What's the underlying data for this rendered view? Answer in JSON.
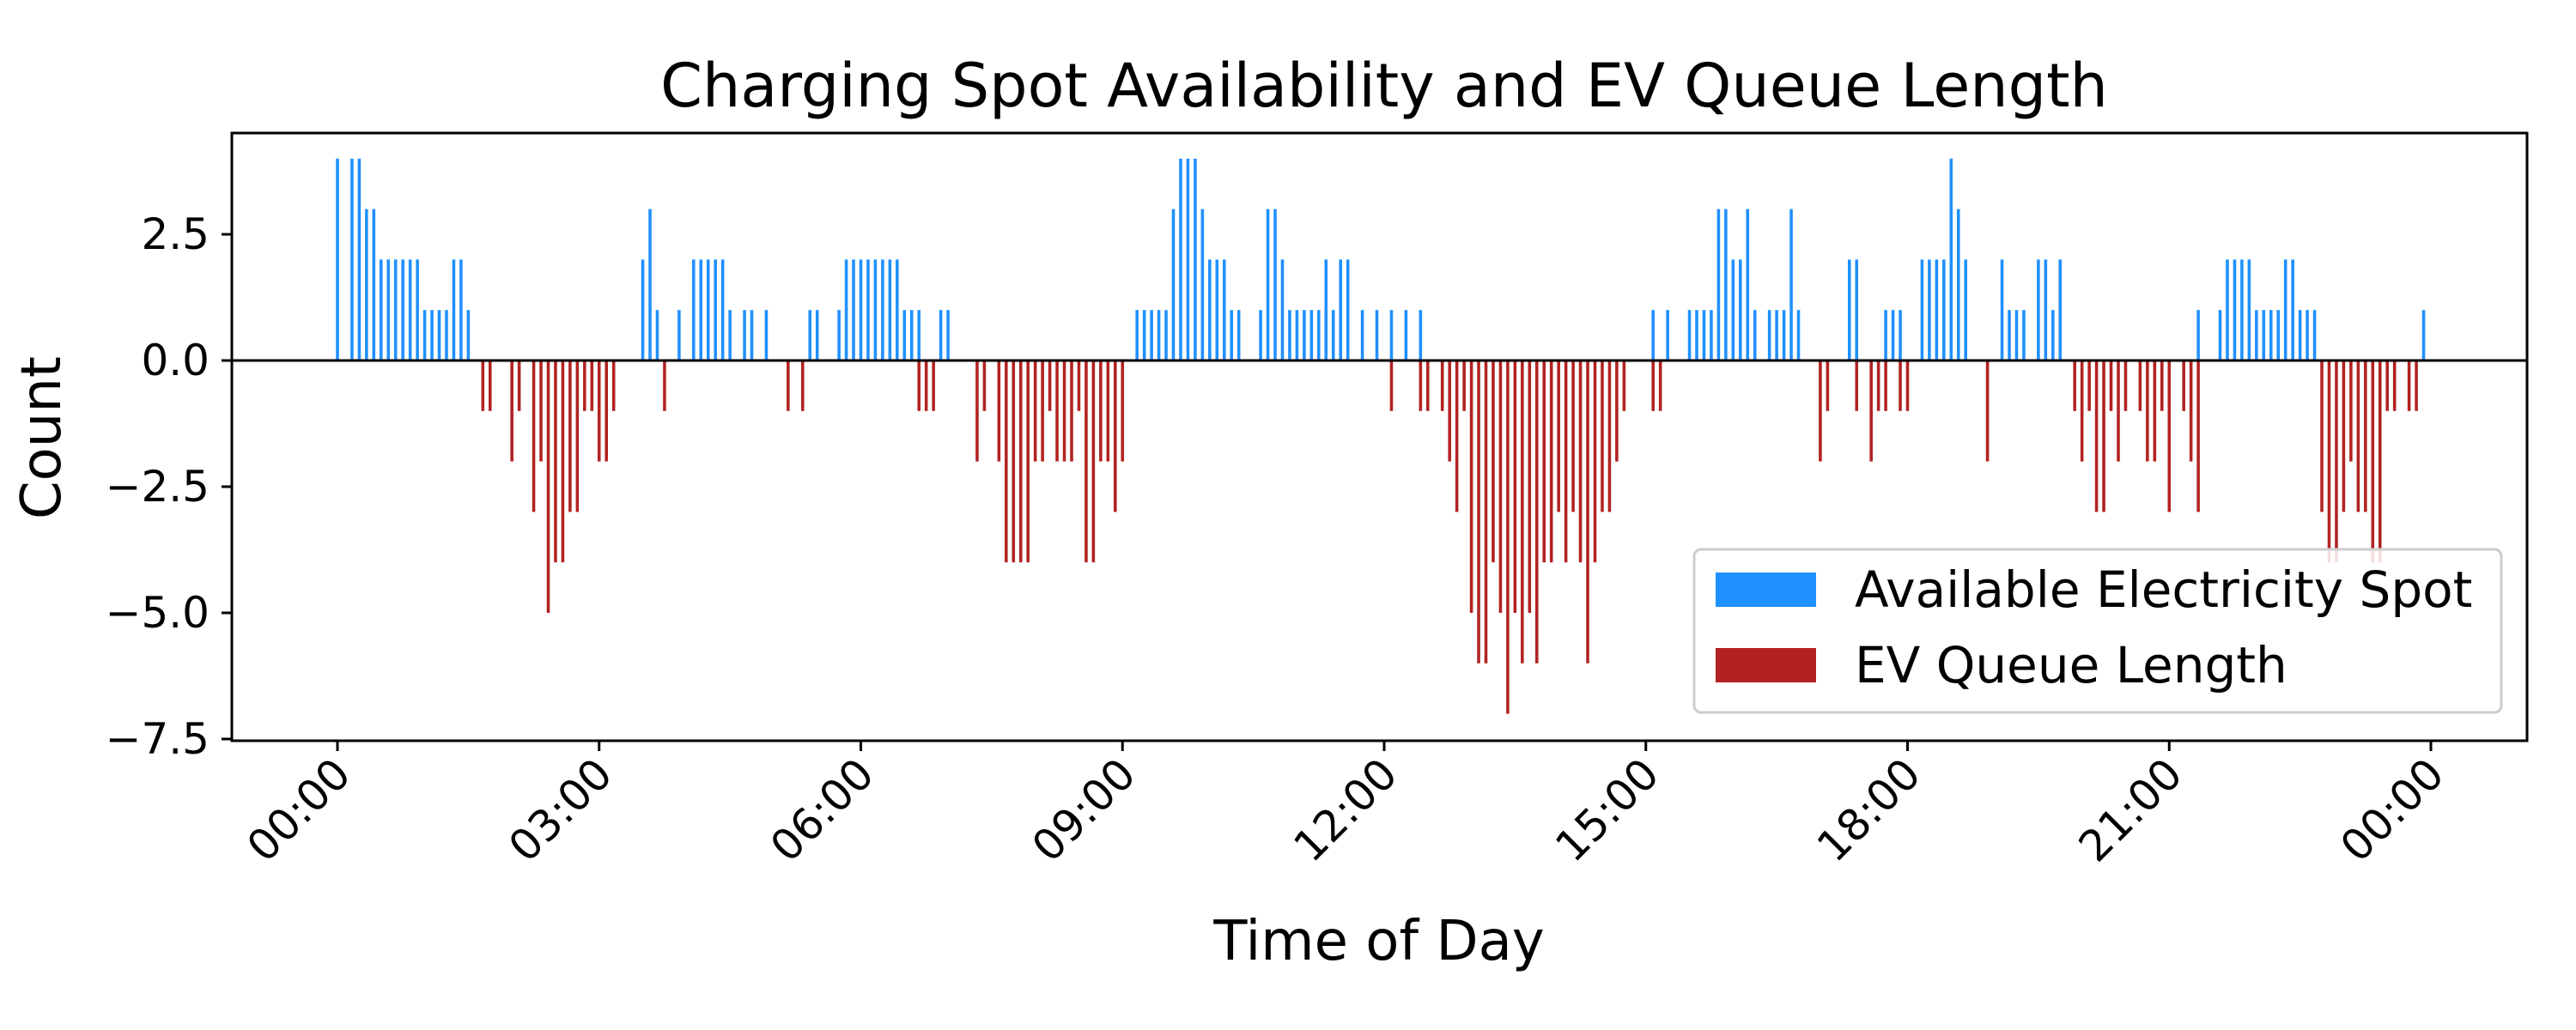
{
  "chart_data": {
    "type": "bar",
    "title": "Charging Spot Availability and EV Queue Length",
    "xlabel": "Time of Day",
    "ylabel": "Count",
    "interval_minutes": 5,
    "x_start": "00:00",
    "x_end": "00:00",
    "xticks": [
      "00:00",
      "03:00",
      "06:00",
      "09:00",
      "12:00",
      "15:00",
      "18:00",
      "21:00",
      "00:00"
    ],
    "yticks": [
      "2.5",
      "0.0",
      "−2.5",
      "−5.0",
      "−7.5"
    ],
    "ylim": [
      -7.5,
      4.5
    ],
    "legend_position": "lower-right",
    "series": [
      {
        "name": "Available Electricity Spot",
        "color": "#1f90ff",
        "points": [
          [
            "00:00",
            4
          ],
          [
            "00:10",
            4
          ],
          [
            "00:15",
            4
          ],
          [
            "00:20",
            3
          ],
          [
            "00:25",
            3
          ],
          [
            "00:30",
            2
          ],
          [
            "00:35",
            2
          ],
          [
            "00:40",
            2
          ],
          [
            "00:45",
            2
          ],
          [
            "00:50",
            2
          ],
          [
            "00:55",
            2
          ],
          [
            "01:00",
            1
          ],
          [
            "01:05",
            1
          ],
          [
            "01:10",
            1
          ],
          [
            "01:15",
            1
          ],
          [
            "01:20",
            2
          ],
          [
            "01:25",
            2
          ],
          [
            "01:30",
            1
          ],
          [
            "03:30",
            2
          ],
          [
            "03:35",
            3
          ],
          [
            "03:40",
            1
          ],
          [
            "03:55",
            1
          ],
          [
            "04:05",
            2
          ],
          [
            "04:10",
            2
          ],
          [
            "04:15",
            2
          ],
          [
            "04:20",
            2
          ],
          [
            "04:25",
            2
          ],
          [
            "04:30",
            1
          ],
          [
            "04:40",
            1
          ],
          [
            "04:45",
            1
          ],
          [
            "04:55",
            1
          ],
          [
            "05:25",
            1
          ],
          [
            "05:30",
            1
          ],
          [
            "05:45",
            1
          ],
          [
            "05:50",
            2
          ],
          [
            "05:55",
            2
          ],
          [
            "06:00",
            2
          ],
          [
            "06:05",
            2
          ],
          [
            "06:10",
            2
          ],
          [
            "06:15",
            2
          ],
          [
            "06:20",
            2
          ],
          [
            "06:25",
            2
          ],
          [
            "06:30",
            1
          ],
          [
            "06:35",
            1
          ],
          [
            "06:40",
            1
          ],
          [
            "06:55",
            1
          ],
          [
            "07:00",
            1
          ],
          [
            "09:10",
            1
          ],
          [
            "09:15",
            1
          ],
          [
            "09:20",
            1
          ],
          [
            "09:25",
            1
          ],
          [
            "09:30",
            1
          ],
          [
            "09:35",
            3
          ],
          [
            "09:40",
            4
          ],
          [
            "09:45",
            4
          ],
          [
            "09:50",
            4
          ],
          [
            "09:55",
            3
          ],
          [
            "10:00",
            2
          ],
          [
            "10:05",
            2
          ],
          [
            "10:10",
            2
          ],
          [
            "10:15",
            1
          ],
          [
            "10:20",
            1
          ],
          [
            "10:35",
            1
          ],
          [
            "10:40",
            3
          ],
          [
            "10:45",
            3
          ],
          [
            "10:50",
            2
          ],
          [
            "10:55",
            1
          ],
          [
            "11:00",
            1
          ],
          [
            "11:05",
            1
          ],
          [
            "11:10",
            1
          ],
          [
            "11:15",
            1
          ],
          [
            "11:20",
            2
          ],
          [
            "11:25",
            1
          ],
          [
            "11:30",
            2
          ],
          [
            "11:35",
            2
          ],
          [
            "11:45",
            1
          ],
          [
            "11:55",
            1
          ],
          [
            "12:05",
            1
          ],
          [
            "12:15",
            1
          ],
          [
            "12:25",
            1
          ],
          [
            "15:05",
            1
          ],
          [
            "15:15",
            1
          ],
          [
            "15:30",
            1
          ],
          [
            "15:35",
            1
          ],
          [
            "15:40",
            1
          ],
          [
            "15:45",
            1
          ],
          [
            "15:50",
            3
          ],
          [
            "15:55",
            3
          ],
          [
            "16:00",
            2
          ],
          [
            "16:05",
            2
          ],
          [
            "16:10",
            3
          ],
          [
            "16:15",
            1
          ],
          [
            "16:25",
            1
          ],
          [
            "16:30",
            1
          ],
          [
            "16:35",
            1
          ],
          [
            "16:40",
            3
          ],
          [
            "16:45",
            1
          ],
          [
            "17:20",
            2
          ],
          [
            "17:25",
            2
          ],
          [
            "17:45",
            1
          ],
          [
            "17:50",
            1
          ],
          [
            "17:55",
            1
          ],
          [
            "18:10",
            2
          ],
          [
            "18:15",
            2
          ],
          [
            "18:20",
            2
          ],
          [
            "18:25",
            2
          ],
          [
            "18:30",
            4
          ],
          [
            "18:35",
            3
          ],
          [
            "18:40",
            2
          ],
          [
            "19:05",
            2
          ],
          [
            "19:10",
            1
          ],
          [
            "19:15",
            1
          ],
          [
            "19:20",
            1
          ],
          [
            "19:30",
            2
          ],
          [
            "19:35",
            2
          ],
          [
            "19:40",
            1
          ],
          [
            "19:45",
            2
          ],
          [
            "21:20",
            1
          ],
          [
            "21:35",
            1
          ],
          [
            "21:40",
            2
          ],
          [
            "21:45",
            2
          ],
          [
            "21:50",
            2
          ],
          [
            "21:55",
            2
          ],
          [
            "22:00",
            1
          ],
          [
            "22:05",
            1
          ],
          [
            "22:10",
            1
          ],
          [
            "22:15",
            1
          ],
          [
            "22:20",
            2
          ],
          [
            "22:25",
            2
          ],
          [
            "22:30",
            1
          ],
          [
            "22:35",
            1
          ],
          [
            "22:40",
            1
          ],
          [
            "23:55",
            1
          ]
        ]
      },
      {
        "name": "EV Queue Length",
        "color": "#b22222",
        "points": [
          [
            "01:40",
            -1
          ],
          [
            "01:45",
            -1
          ],
          [
            "02:00",
            -2
          ],
          [
            "02:05",
            -1
          ],
          [
            "02:15",
            -3
          ],
          [
            "02:20",
            -2
          ],
          [
            "02:25",
            -5
          ],
          [
            "02:30",
            -4
          ],
          [
            "02:35",
            -4
          ],
          [
            "02:40",
            -3
          ],
          [
            "02:45",
            -3
          ],
          [
            "02:50",
            -1
          ],
          [
            "02:55",
            -1
          ],
          [
            "03:00",
            -2
          ],
          [
            "03:05",
            -2
          ],
          [
            "03:10",
            -1
          ],
          [
            "03:45",
            -1
          ],
          [
            "05:10",
            -1
          ],
          [
            "05:20",
            -1
          ],
          [
            "06:40",
            -1
          ],
          [
            "06:45",
            -1
          ],
          [
            "06:50",
            -1
          ],
          [
            "07:20",
            -2
          ],
          [
            "07:25",
            -1
          ],
          [
            "07:35",
            -2
          ],
          [
            "07:40",
            -4
          ],
          [
            "07:45",
            -4
          ],
          [
            "07:50",
            -4
          ],
          [
            "07:55",
            -4
          ],
          [
            "08:00",
            -2
          ],
          [
            "08:05",
            -2
          ],
          [
            "08:10",
            -1
          ],
          [
            "08:15",
            -2
          ],
          [
            "08:20",
            -2
          ],
          [
            "08:25",
            -2
          ],
          [
            "08:30",
            -1
          ],
          [
            "08:35",
            -4
          ],
          [
            "08:40",
            -4
          ],
          [
            "08:45",
            -2
          ],
          [
            "08:50",
            -2
          ],
          [
            "08:55",
            -3
          ],
          [
            "09:00",
            -2
          ],
          [
            "12:05",
            -1
          ],
          [
            "12:25",
            -1
          ],
          [
            "12:30",
            -1
          ],
          [
            "12:40",
            -1
          ],
          [
            "12:45",
            -2
          ],
          [
            "12:50",
            -3
          ],
          [
            "12:55",
            -1
          ],
          [
            "13:00",
            -5
          ],
          [
            "13:05",
            -6
          ],
          [
            "13:10",
            -6
          ],
          [
            "13:15",
            -4
          ],
          [
            "13:20",
            -5
          ],
          [
            "13:25",
            -7
          ],
          [
            "13:30",
            -5
          ],
          [
            "13:35",
            -6
          ],
          [
            "13:40",
            -5
          ],
          [
            "13:45",
            -6
          ],
          [
            "13:50",
            -4
          ],
          [
            "13:55",
            -4
          ],
          [
            "14:00",
            -3
          ],
          [
            "14:05",
            -4
          ],
          [
            "14:10",
            -3
          ],
          [
            "14:15",
            -4
          ],
          [
            "14:20",
            -6
          ],
          [
            "14:25",
            -4
          ],
          [
            "14:30",
            -3
          ],
          [
            "14:35",
            -3
          ],
          [
            "14:40",
            -2
          ],
          [
            "14:45",
            -1
          ],
          [
            "15:05",
            -1
          ],
          [
            "15:10",
            -1
          ],
          [
            "17:00",
            -2
          ],
          [
            "17:05",
            -1
          ],
          [
            "17:25",
            -1
          ],
          [
            "17:35",
            -2
          ],
          [
            "17:40",
            -1
          ],
          [
            "17:45",
            -1
          ],
          [
            "17:55",
            -1
          ],
          [
            "18:00",
            -1
          ],
          [
            "18:55",
            -2
          ],
          [
            "19:55",
            -1
          ],
          [
            "20:00",
            -2
          ],
          [
            "20:05",
            -1
          ],
          [
            "20:10",
            -3
          ],
          [
            "20:15",
            -3
          ],
          [
            "20:20",
            -1
          ],
          [
            "20:25",
            -2
          ],
          [
            "20:30",
            -1
          ],
          [
            "20:40",
            -1
          ],
          [
            "20:45",
            -2
          ],
          [
            "20:50",
            -2
          ],
          [
            "20:55",
            -1
          ],
          [
            "21:00",
            -3
          ],
          [
            "21:10",
            -1
          ],
          [
            "21:15",
            -2
          ],
          [
            "21:20",
            -3
          ],
          [
            "22:45",
            -3
          ],
          [
            "22:50",
            -4
          ],
          [
            "22:55",
            -4
          ],
          [
            "23:00",
            -3
          ],
          [
            "23:05",
            -2
          ],
          [
            "23:10",
            -3
          ],
          [
            "23:15",
            -3
          ],
          [
            "23:20",
            -4
          ],
          [
            "23:25",
            -4
          ],
          [
            "23:30",
            -1
          ],
          [
            "23:35",
            -1
          ],
          [
            "23:45",
            -1
          ],
          [
            "23:50",
            -1
          ]
        ]
      }
    ]
  }
}
